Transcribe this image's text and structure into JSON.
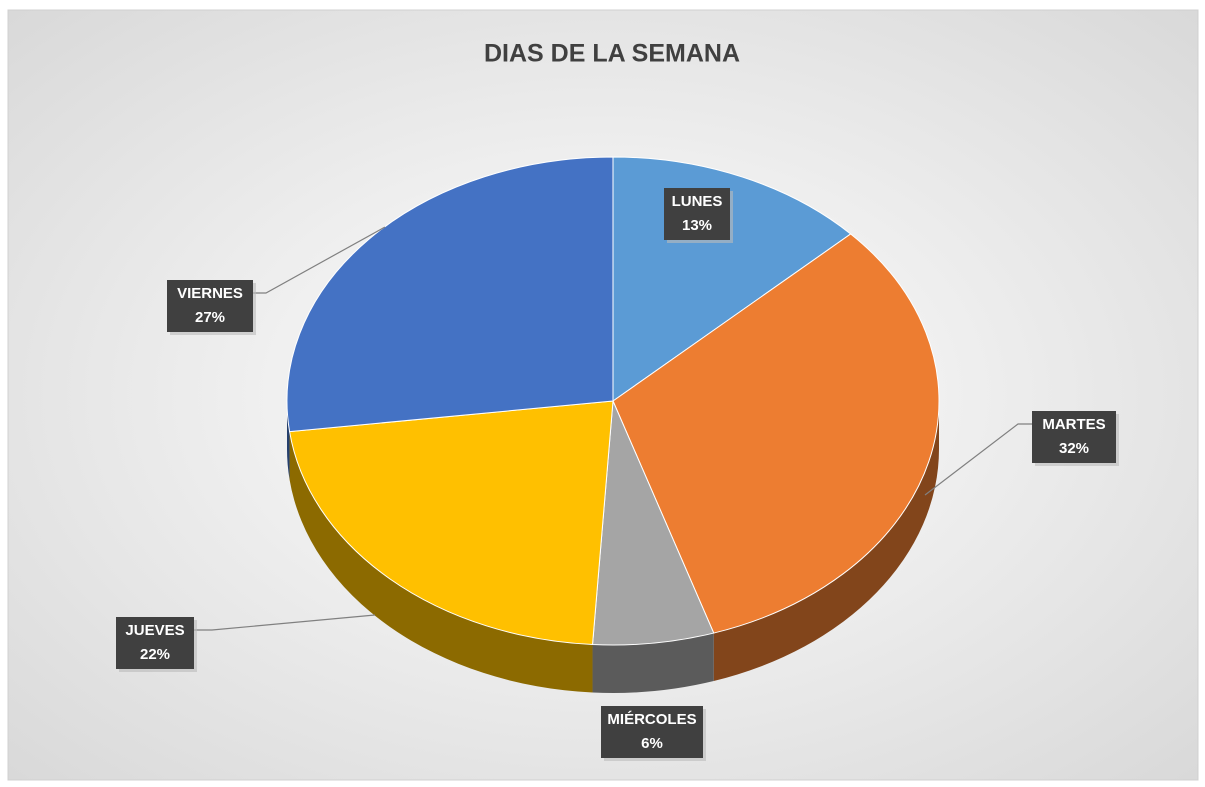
{
  "chart_data": {
    "type": "pie",
    "title": "DIAS DE LA SEMANA",
    "categories": [
      "LUNES",
      "MARTES",
      "MIÉRCOLES",
      "JUEVES",
      "VIERNES"
    ],
    "values": [
      13,
      32,
      6,
      22,
      27
    ],
    "value_labels": [
      "13%",
      "32%",
      "6%",
      "22%",
      "27%"
    ],
    "colors": [
      "#5b9bd5",
      "#ed7d31",
      "#a5a5a5",
      "#ffc000",
      "#4472c4"
    ]
  }
}
